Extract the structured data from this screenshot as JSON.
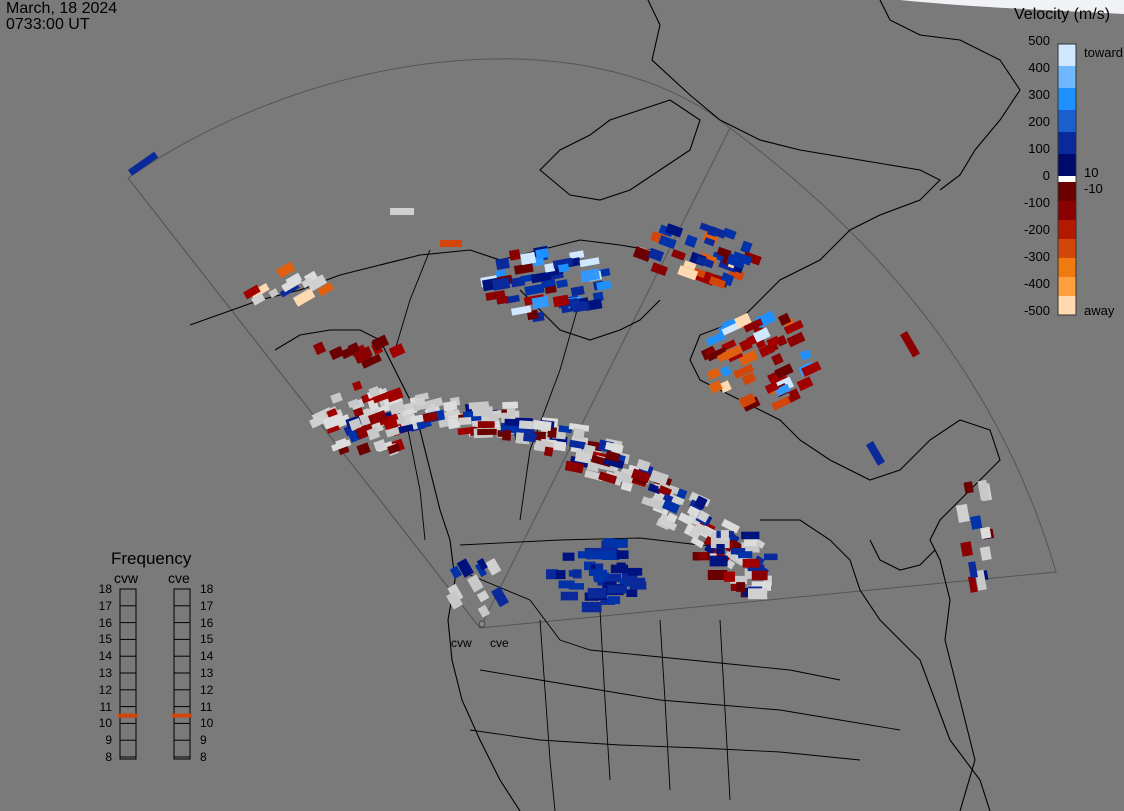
{
  "header": {
    "date": "March, 18 2024",
    "time": "0733:00 UT"
  },
  "colorbar": {
    "title": "Velocity (m/s)",
    "ticks": [
      "500",
      "400",
      "300",
      "200",
      "100",
      "0",
      "-100",
      "-200",
      "-300",
      "-400",
      "-500"
    ],
    "inner_pos": "10",
    "inner_neg": "-10",
    "toward_label": "toward",
    "away_label": "away",
    "colors": {
      "toward_strong": "#cfe8ff",
      "toward_mid": "#1e90ff",
      "toward_low": "#0a2a9c",
      "away_low": "#8b0000",
      "away_mid": "#d2460a",
      "away_strong": "#ffd9b0",
      "low_power": "#d0d0d0"
    }
  },
  "frequency": {
    "title": "Frequency",
    "radar_left": "cvw",
    "radar_right": "cve",
    "levels": [
      "18",
      "17",
      "16",
      "15",
      "14",
      "13",
      "12",
      "11",
      "10",
      "9",
      "8"
    ],
    "cvw_mhz": 11,
    "cve_mhz": 11
  },
  "radars": {
    "west": "cvw",
    "east": "cve"
  }
}
